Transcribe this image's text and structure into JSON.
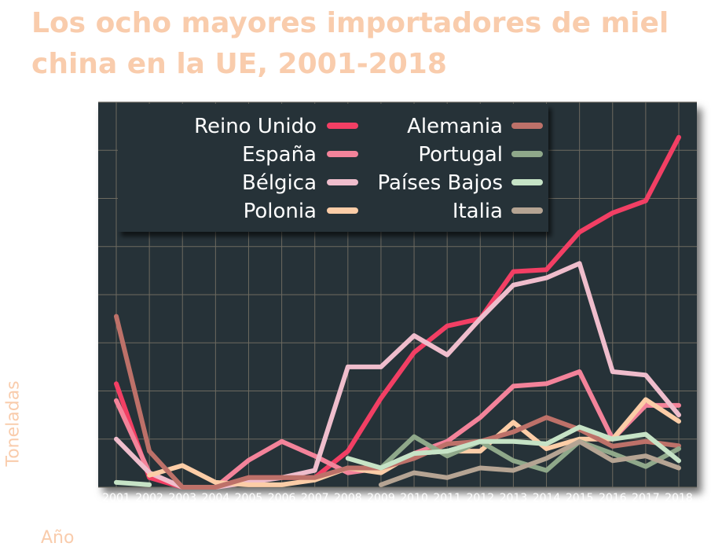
{
  "title_line1": "Los ocho mayores importadores de miel",
  "title_line2": "china en la UE, 2001-2018",
  "chart_data": {
    "type": "line",
    "title": "Los ocho mayores importadores de miel china en la UE, 2001-2018",
    "xlabel": "Año",
    "ylabel": "Toneladas",
    "x": [
      2001,
      2002,
      2003,
      2004,
      2005,
      2006,
      2007,
      2008,
      2009,
      2010,
      2011,
      2012,
      2013,
      2014,
      2015,
      2016,
      2017,
      2018
    ],
    "ylim": [
      0,
      8000
    ],
    "grid": true,
    "legend_position": "top-left",
    "background": "#263238",
    "series": [
      {
        "name": "Reino Unido",
        "color": "#f23f64",
        "values": [
          2150,
          200,
          0,
          0,
          200,
          200,
          200,
          750,
          1850,
          2800,
          3350,
          3500,
          4480,
          4520,
          5300,
          5700,
          5950,
          7270
        ]
      },
      {
        "name": "España",
        "color": "#f3839a",
        "values": [
          1800,
          300,
          0,
          0,
          560,
          950,
          650,
          300,
          400,
          700,
          950,
          1450,
          2100,
          2150,
          2400,
          1000,
          1700,
          1700
        ]
      },
      {
        "name": "Bélgica",
        "color": "#efbdcc",
        "values": [
          1000,
          300,
          0,
          0,
          100,
          200,
          350,
          2500,
          2500,
          3150,
          2750,
          3500,
          4200,
          4350,
          4650,
          2400,
          2330,
          1500
        ]
      },
      {
        "name": "Polonia",
        "color": "#fccda7",
        "values": [
          null,
          250,
          450,
          100,
          50,
          50,
          150,
          400,
          300,
          700,
          750,
          750,
          1350,
          800,
          1000,
          1000,
          1820,
          1370
        ]
      },
      {
        "name": "Alemania",
        "color": "#bd7169",
        "values": [
          3550,
          750,
          0,
          0,
          200,
          200,
          200,
          400,
          400,
          600,
          900,
          950,
          1150,
          1450,
          1200,
          850,
          950,
          860
        ]
      },
      {
        "name": "Portugal",
        "color": "#8fa88a",
        "values": [
          null,
          null,
          null,
          null,
          null,
          null,
          null,
          null,
          400,
          1050,
          650,
          950,
          550,
          350,
          950,
          700,
          430,
          800
        ]
      },
      {
        "name": "Países Bajos",
        "color": "#c6e3c6",
        "values": [
          100,
          50,
          null,
          null,
          null,
          null,
          null,
          600,
          400,
          700,
          750,
          950,
          950,
          900,
          1250,
          1000,
          1100,
          550
        ]
      },
      {
        "name": "Italia",
        "color": "#b5a493",
        "values": [
          null,
          null,
          null,
          null,
          null,
          null,
          null,
          null,
          50,
          300,
          200,
          400,
          350,
          600,
          950,
          550,
          650,
          400
        ]
      }
    ]
  }
}
